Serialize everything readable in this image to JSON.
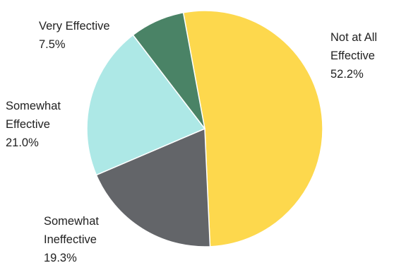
{
  "chart_data": {
    "type": "pie",
    "title": "",
    "slices": [
      {
        "label_lines": [
          "Not at All",
          "Effective"
        ],
        "value_label": "52.2%",
        "value": 52.2,
        "color": "#fdd84d"
      },
      {
        "label_lines": [
          "Somewhat",
          "Ineffective"
        ],
        "value_label": "19.3%",
        "value": 19.3,
        "color": "#636569"
      },
      {
        "label_lines": [
          "Somewhat",
          "Effective"
        ],
        "value_label": "21.0%",
        "value": 21.0,
        "color": "#ade8e6"
      },
      {
        "label_lines": [
          "Very Effective"
        ],
        "value_label": "7.5%",
        "value": 7.5,
        "color": "#4a8366"
      }
    ]
  }
}
